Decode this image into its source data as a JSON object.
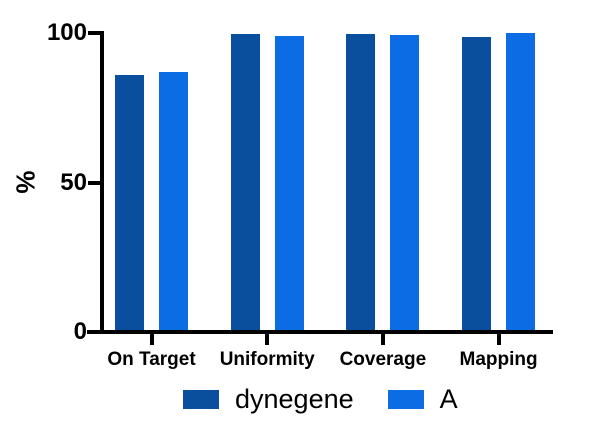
{
  "chart_data": {
    "type": "bar",
    "title": "",
    "categories": [
      "On Target",
      "Uniformity",
      "Coverage",
      "Mapping"
    ],
    "series": [
      {
        "name": "dynegene",
        "color": "#0a4f9e",
        "values": [
          86.0,
          99.7,
          99.7,
          98.7
        ]
      },
      {
        "name": "A",
        "color": "#0b6ce4",
        "values": [
          87.0,
          99.0,
          99.4,
          100.0
        ]
      }
    ],
    "xlabel": "",
    "ylabel": "%",
    "ylim": [
      0,
      100
    ],
    "yticks": [
      0,
      50,
      100
    ],
    "grid": false,
    "legend_position": "bottom",
    "axis_color": "#000000",
    "background_color": "#ffffff"
  }
}
